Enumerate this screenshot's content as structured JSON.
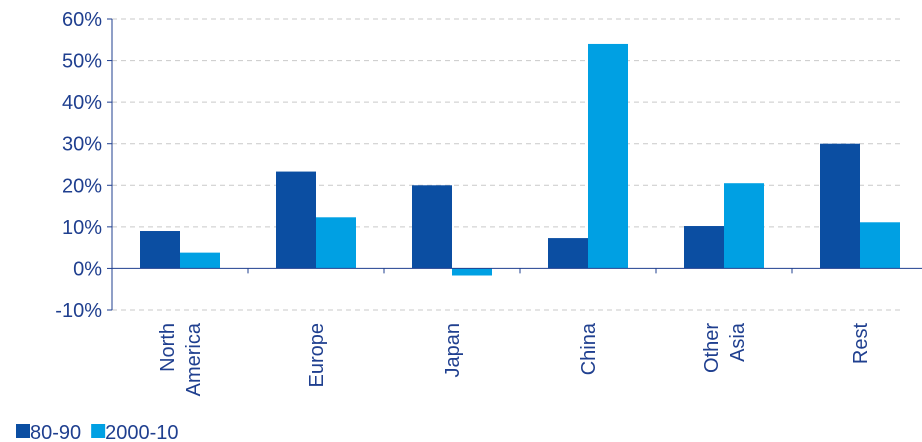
{
  "chart_data": {
    "type": "bar",
    "categories": [
      [
        "North",
        "America"
      ],
      [
        "Europe"
      ],
      [
        "Japan"
      ],
      [
        "China"
      ],
      [
        "Other",
        "Asia"
      ],
      [
        "Rest"
      ]
    ],
    "series": [
      {
        "name": "80-90",
        "color": "#0b4ea2",
        "values": [
          9,
          23.3,
          20,
          7.3,
          10.2,
          30
        ]
      },
      {
        "name": "2000-10",
        "color": "#00a0e3",
        "values": [
          3.8,
          12.3,
          -1.7,
          54,
          20.5,
          11.1
        ]
      }
    ],
    "y_ticks": [
      "-10%",
      "0%",
      "10%",
      "20%",
      "30%",
      "40%",
      "50%",
      "60%"
    ],
    "ylim": [
      -10,
      60
    ],
    "grid": true,
    "legend_position": "bottom-left",
    "title": "",
    "xlabel": "",
    "ylabel": ""
  }
}
